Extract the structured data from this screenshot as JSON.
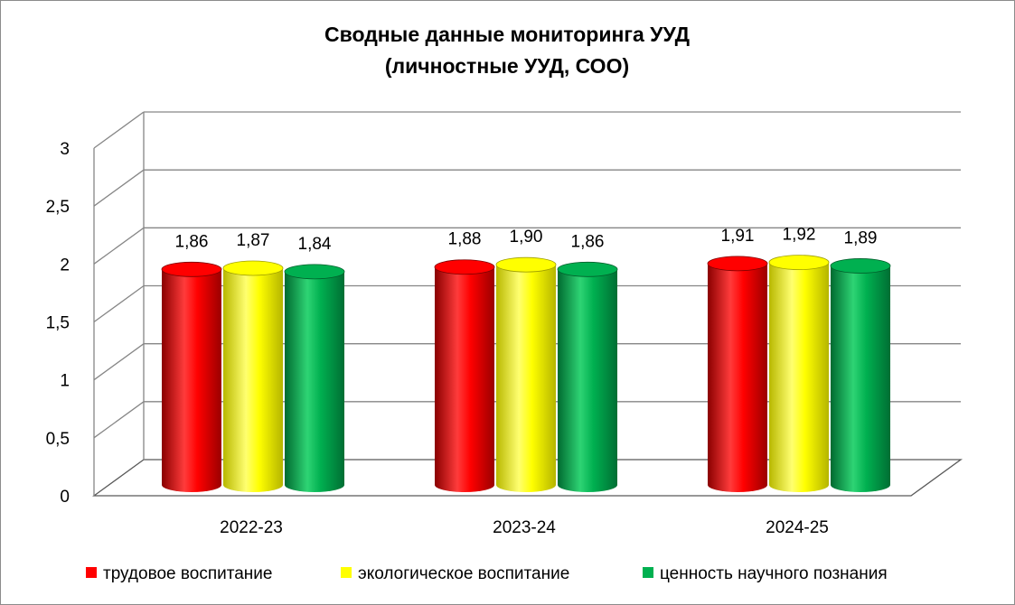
{
  "chart_data": {
    "type": "bar",
    "title_lines": [
      "Сводные данные мониторинга УУД",
      "(личностные УУД, СОО)"
    ],
    "categories": [
      "2022-23",
      "2023-24",
      "2024-25"
    ],
    "series": [
      {
        "name": "трудовое воспитание",
        "color": "#ff0000",
        "values": [
          1.86,
          1.88,
          1.91
        ],
        "labels": [
          "1,86",
          "1,88",
          "1,91"
        ]
      },
      {
        "name": "экологическое воспитание",
        "color": "#ffff00",
        "values": [
          1.87,
          1.9,
          1.92
        ],
        "labels": [
          "1,87",
          "1,90",
          "1,92"
        ]
      },
      {
        "name": "ценность научного познания",
        "color": "#00b050",
        "values": [
          1.84,
          1.86,
          1.89
        ],
        "labels": [
          "1,84",
          "1,86",
          "1,89"
        ]
      }
    ],
    "ylim": [
      0,
      3
    ],
    "yticks": [
      0,
      0.5,
      1,
      1.5,
      2,
      2.5,
      3
    ],
    "ytick_labels": [
      "0",
      "0,5",
      "1",
      "1,5",
      "2",
      "2,5",
      "3"
    ],
    "grid": true,
    "style": "3d-cylinder",
    "legend": "bottom"
  }
}
